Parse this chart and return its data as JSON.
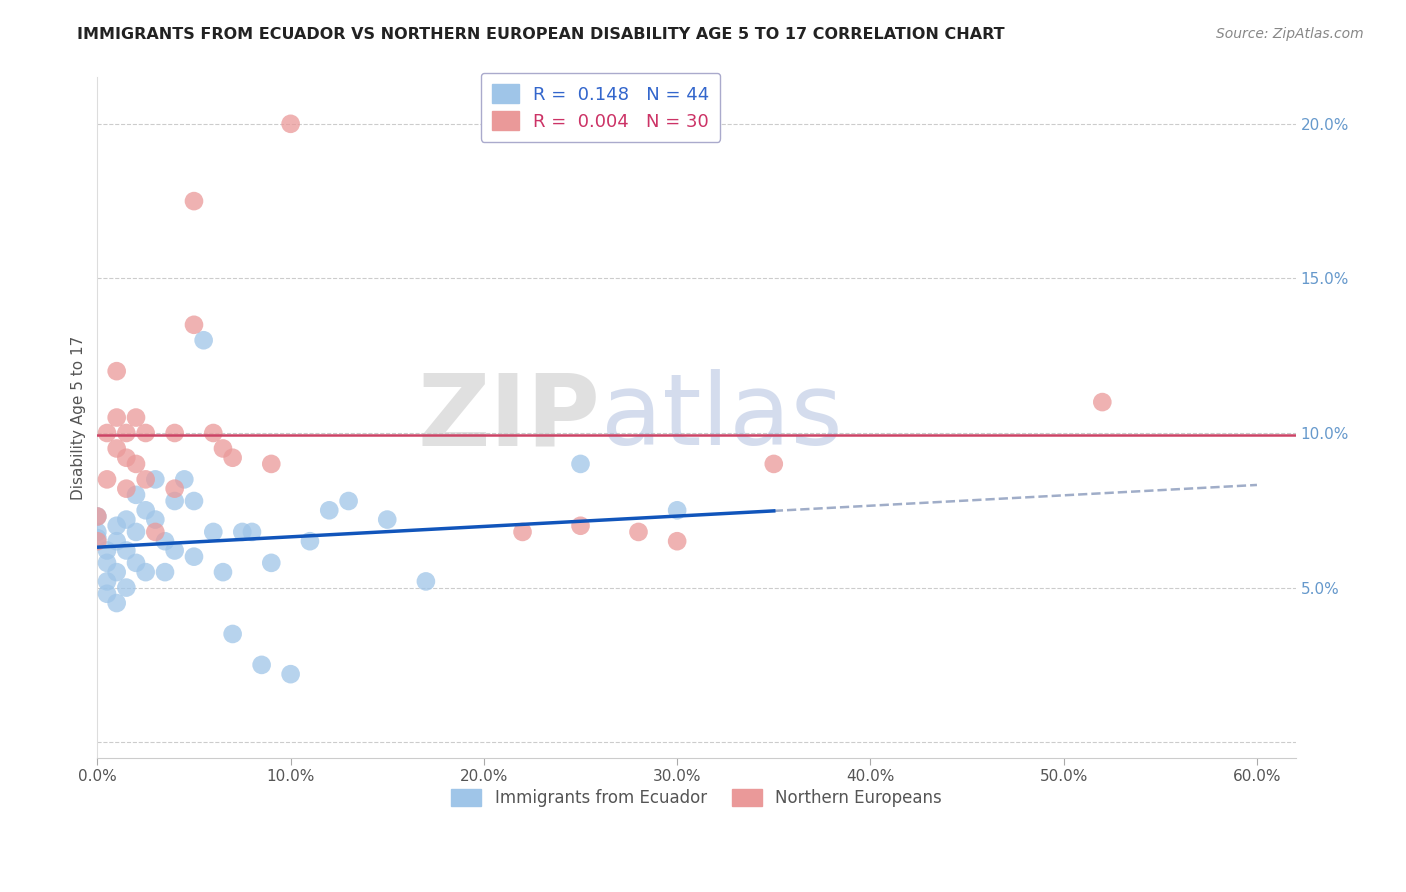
{
  "title": "IMMIGRANTS FROM ECUADOR VS NORTHERN EUROPEAN DISABILITY AGE 5 TO 17 CORRELATION CHART",
  "source": "Source: ZipAtlas.com",
  "ylabel": "Disability Age 5 to 17",
  "xlim": [
    0.0,
    0.62
  ],
  "ylim": [
    -0.005,
    0.215
  ],
  "xticks": [
    0.0,
    0.1,
    0.2,
    0.3,
    0.4,
    0.5,
    0.6
  ],
  "xticklabels": [
    "0.0%",
    "10.0%",
    "20.0%",
    "30.0%",
    "40.0%",
    "50.0%",
    "60.0%"
  ],
  "yticks": [
    0.0,
    0.05,
    0.1,
    0.15,
    0.2
  ],
  "yticklabels": [
    "",
    "5.0%",
    "10.0%",
    "15.0%",
    "20.0%"
  ],
  "blue_color": "#9fc5e8",
  "pink_color": "#ea9999",
  "blue_line_color": "#1155bb",
  "pink_line_color": "#cc4466",
  "watermark_zip": "ZIP",
  "watermark_atlas": "atlas",
  "R_blue": 0.148,
  "N_blue": 44,
  "R_pink": 0.004,
  "N_pink": 30,
  "ecuador_x": [
    0.0,
    0.0,
    0.0,
    0.005,
    0.005,
    0.005,
    0.005,
    0.01,
    0.01,
    0.01,
    0.01,
    0.015,
    0.015,
    0.015,
    0.02,
    0.02,
    0.02,
    0.025,
    0.025,
    0.03,
    0.03,
    0.035,
    0.035,
    0.04,
    0.04,
    0.045,
    0.05,
    0.05,
    0.055,
    0.06,
    0.065,
    0.07,
    0.075,
    0.08,
    0.085,
    0.09,
    0.1,
    0.11,
    0.12,
    0.13,
    0.15,
    0.17,
    0.25,
    0.3
  ],
  "ecuador_y": [
    0.066,
    0.073,
    0.068,
    0.062,
    0.058,
    0.052,
    0.048,
    0.07,
    0.065,
    0.055,
    0.045,
    0.072,
    0.062,
    0.05,
    0.08,
    0.068,
    0.058,
    0.075,
    0.055,
    0.085,
    0.072,
    0.065,
    0.055,
    0.078,
    0.062,
    0.085,
    0.078,
    0.06,
    0.13,
    0.068,
    0.055,
    0.035,
    0.068,
    0.068,
    0.025,
    0.058,
    0.022,
    0.065,
    0.075,
    0.078,
    0.072,
    0.052,
    0.09,
    0.075
  ],
  "northern_x": [
    0.0,
    0.0,
    0.005,
    0.005,
    0.01,
    0.01,
    0.01,
    0.015,
    0.015,
    0.015,
    0.02,
    0.02,
    0.025,
    0.025,
    0.03,
    0.04,
    0.04,
    0.05,
    0.05,
    0.06,
    0.065,
    0.07,
    0.09,
    0.1,
    0.22,
    0.25,
    0.28,
    0.3,
    0.35,
    0.52
  ],
  "northern_y": [
    0.065,
    0.073,
    0.1,
    0.085,
    0.12,
    0.105,
    0.095,
    0.1,
    0.092,
    0.082,
    0.105,
    0.09,
    0.1,
    0.085,
    0.068,
    0.1,
    0.082,
    0.175,
    0.135,
    0.1,
    0.095,
    0.092,
    0.09,
    0.2,
    0.068,
    0.07,
    0.068,
    0.065,
    0.09,
    0.11
  ]
}
